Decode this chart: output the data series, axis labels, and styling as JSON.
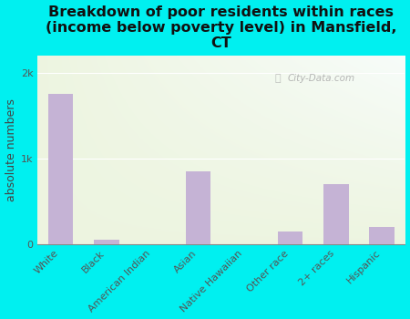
{
  "categories": [
    "White",
    "Black",
    "American Indian",
    "Asian",
    "Native Hawaiian",
    "Other race",
    "2+ races",
    "Hispanic"
  ],
  "values": [
    1750,
    50,
    0,
    850,
    0,
    150,
    700,
    200
  ],
  "bar_color": "#c5b3d5",
  "title": "Breakdown of poor residents within races\n(income below poverty level) in Mansfield,\nCT",
  "ylabel": "absolute numbers",
  "yticks": [
    0,
    1000,
    2000
  ],
  "ytick_labels": [
    "0",
    "1k",
    "2k"
  ],
  "ylim": [
    0,
    2200
  ],
  "background_outer": "#00f0f0",
  "title_fontsize": 11.5,
  "ylabel_fontsize": 9,
  "tick_fontsize": 8,
  "watermark": "City-Data.com"
}
